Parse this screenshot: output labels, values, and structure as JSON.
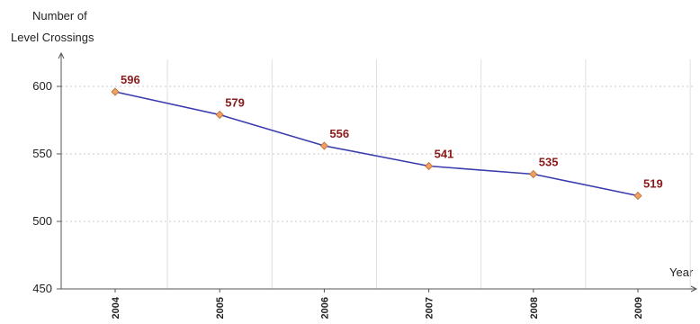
{
  "chart_data": {
    "type": "line",
    "title": "",
    "ylabel_line1": "Number of",
    "ylabel_line2": "Level Crossings",
    "xlabel": "Year",
    "categories": [
      "2004",
      "2005",
      "2006",
      "2007",
      "2008",
      "2009"
    ],
    "series": [
      {
        "values": [
          596,
          579,
          556,
          541,
          535,
          519
        ]
      }
    ],
    "data_labels": [
      "596",
      "579",
      "556",
      "541",
      "535",
      "519"
    ],
    "y_ticks": [
      450,
      500,
      550,
      600
    ],
    "y_tick_labels": [
      "450",
      "500",
      "550",
      "600"
    ],
    "ylim": [
      450,
      620
    ],
    "grid": true,
    "legend": "none",
    "colors": {
      "line": "#3b3bb0",
      "marker_fill": "#f0a060",
      "marker_stroke": "#b86a30",
      "data_label": "#8b1a1a",
      "grid": "#c8c8c8",
      "axis": "#555555"
    }
  }
}
